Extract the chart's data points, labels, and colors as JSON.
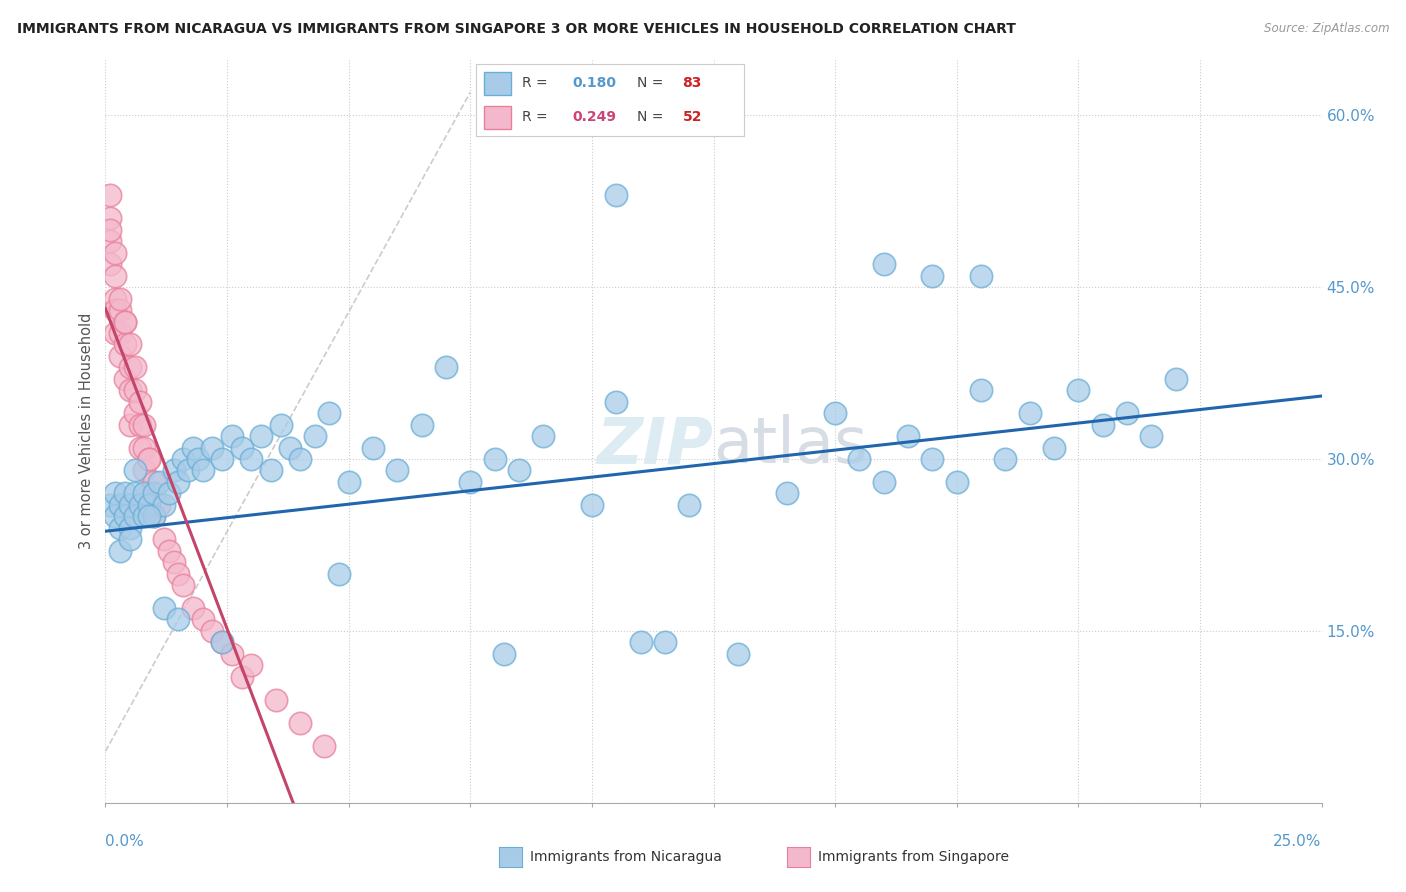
{
  "title": "IMMIGRANTS FROM NICARAGUA VS IMMIGRANTS FROM SINGAPORE 3 OR MORE VEHICLES IN HOUSEHOLD CORRELATION CHART",
  "source": "Source: ZipAtlas.com",
  "ylabel_label": "3 or more Vehicles in Household",
  "legend_r_nic": "0.180",
  "legend_n_nic": "83",
  "legend_r_sing": "0.249",
  "legend_n_sing": "52",
  "nicaragua_color": "#a8cce8",
  "nicaragua_edge_color": "#6aaed6",
  "singapore_color": "#f4b8cc",
  "singapore_edge_color": "#e8809a",
  "nicaragua_line_color": "#2166ac",
  "singapore_line_color": "#c44569",
  "ref_line_color": "#cccccc",
  "watermark": "ZIPatlas",
  "xmin": 0.0,
  "xmax": 0.25,
  "ymin": 0.0,
  "ymax": 0.65,
  "yticks": [
    0.0,
    0.15,
    0.3,
    0.45,
    0.6
  ],
  "nic_x": [
    0.001,
    0.002,
    0.002,
    0.003,
    0.003,
    0.004,
    0.004,
    0.005,
    0.005,
    0.006,
    0.006,
    0.007,
    0.008,
    0.008,
    0.009,
    0.01,
    0.01,
    0.011,
    0.012,
    0.013,
    0.014,
    0.015,
    0.016,
    0.017,
    0.018,
    0.019,
    0.02,
    0.022,
    0.024,
    0.026,
    0.028,
    0.03,
    0.032,
    0.034,
    0.036,
    0.038,
    0.04,
    0.043,
    0.046,
    0.05,
    0.055,
    0.06,
    0.065,
    0.07,
    0.075,
    0.08,
    0.085,
    0.09,
    0.1,
    0.105,
    0.11,
    0.115,
    0.12,
    0.13,
    0.14,
    0.15,
    0.155,
    0.16,
    0.165,
    0.17,
    0.175,
    0.18,
    0.185,
    0.19,
    0.195,
    0.2,
    0.205,
    0.21,
    0.215,
    0.22,
    0.105,
    0.16,
    0.17,
    0.18,
    0.082,
    0.048,
    0.024,
    0.012,
    0.006,
    0.003,
    0.005,
    0.009,
    0.015
  ],
  "nic_y": [
    0.26,
    0.25,
    0.27,
    0.24,
    0.26,
    0.25,
    0.27,
    0.26,
    0.24,
    0.27,
    0.25,
    0.26,
    0.25,
    0.27,
    0.26,
    0.27,
    0.25,
    0.28,
    0.26,
    0.27,
    0.29,
    0.28,
    0.3,
    0.29,
    0.31,
    0.3,
    0.29,
    0.31,
    0.3,
    0.32,
    0.31,
    0.3,
    0.32,
    0.29,
    0.33,
    0.31,
    0.3,
    0.32,
    0.34,
    0.28,
    0.31,
    0.29,
    0.33,
    0.38,
    0.28,
    0.3,
    0.29,
    0.32,
    0.26,
    0.35,
    0.14,
    0.14,
    0.26,
    0.13,
    0.27,
    0.34,
    0.3,
    0.28,
    0.32,
    0.3,
    0.28,
    0.36,
    0.3,
    0.34,
    0.31,
    0.36,
    0.33,
    0.34,
    0.32,
    0.37,
    0.53,
    0.47,
    0.46,
    0.46,
    0.13,
    0.2,
    0.14,
    0.17,
    0.29,
    0.22,
    0.23,
    0.25,
    0.16
  ],
  "sing_x": [
    0.001,
    0.001,
    0.001,
    0.002,
    0.002,
    0.002,
    0.002,
    0.003,
    0.003,
    0.003,
    0.004,
    0.004,
    0.004,
    0.005,
    0.005,
    0.005,
    0.006,
    0.006,
    0.007,
    0.007,
    0.008,
    0.008,
    0.009,
    0.009,
    0.01,
    0.01,
    0.011,
    0.012,
    0.013,
    0.014,
    0.015,
    0.016,
    0.018,
    0.02,
    0.022,
    0.024,
    0.026,
    0.028,
    0.03,
    0.035,
    0.04,
    0.045,
    0.001,
    0.001,
    0.002,
    0.003,
    0.004,
    0.005,
    0.006,
    0.007,
    0.008,
    0.009
  ],
  "sing_y": [
    0.49,
    0.47,
    0.51,
    0.44,
    0.46,
    0.41,
    0.43,
    0.39,
    0.41,
    0.43,
    0.37,
    0.4,
    0.42,
    0.36,
    0.38,
    0.33,
    0.34,
    0.36,
    0.31,
    0.33,
    0.29,
    0.31,
    0.27,
    0.3,
    0.25,
    0.28,
    0.26,
    0.23,
    0.22,
    0.21,
    0.2,
    0.19,
    0.17,
    0.16,
    0.15,
    0.14,
    0.13,
    0.11,
    0.12,
    0.09,
    0.07,
    0.05,
    0.53,
    0.5,
    0.48,
    0.44,
    0.42,
    0.4,
    0.38,
    0.35,
    0.33,
    0.3
  ]
}
